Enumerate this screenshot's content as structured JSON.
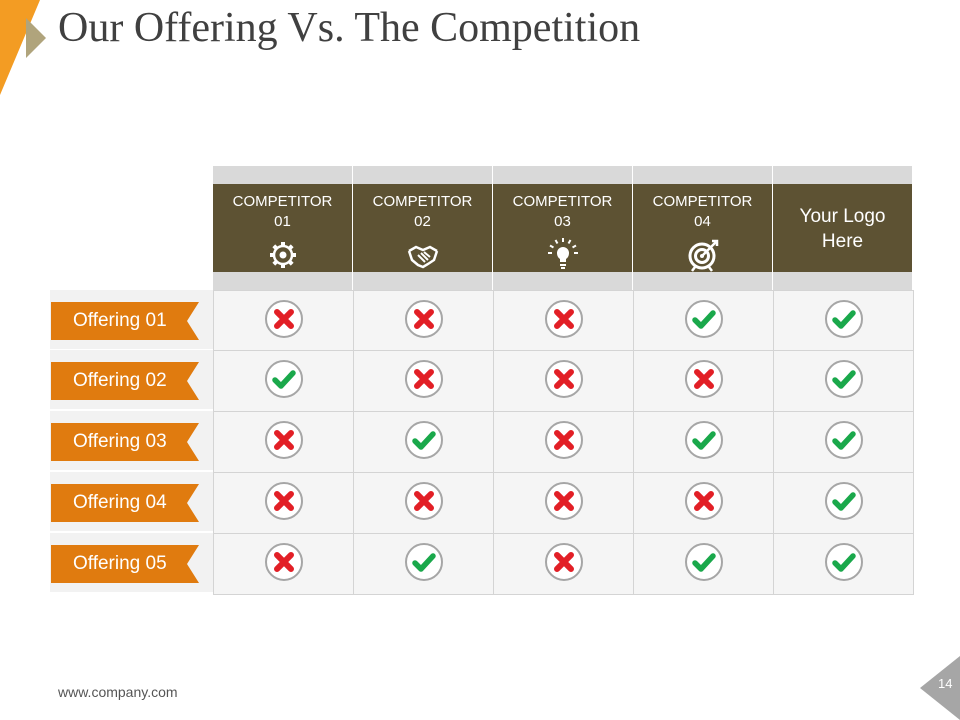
{
  "title": "Our Offering Vs. The Competition",
  "columns": [
    {
      "label": "COMPETITOR\n01",
      "icon": "gear-icon"
    },
    {
      "label": "COMPETITOR\n02",
      "icon": "handshake-icon"
    },
    {
      "label": "COMPETITOR\n03",
      "icon": "lightbulb-icon"
    },
    {
      "label": "COMPETITOR\n04",
      "icon": "target-icon"
    },
    {
      "label": "Your Logo\nHere",
      "icon": ""
    }
  ],
  "rows": [
    {
      "label": "Offering 01",
      "marks": [
        "cross",
        "cross",
        "cross",
        "check",
        "check"
      ]
    },
    {
      "label": "Offering 02",
      "marks": [
        "check",
        "cross",
        "cross",
        "cross",
        "check"
      ]
    },
    {
      "label": "Offering 03",
      "marks": [
        "cross",
        "check",
        "cross",
        "check",
        "check"
      ]
    },
    {
      "label": "Offering 04",
      "marks": [
        "cross",
        "cross",
        "cross",
        "cross",
        "check"
      ]
    },
    {
      "label": "Offering 05",
      "marks": [
        "cross",
        "check",
        "cross",
        "check",
        "check"
      ]
    }
  ],
  "footer": {
    "url": "www.company.com",
    "page_number": "14"
  },
  "colors": {
    "accent_orange": "#e07b0f",
    "header_brown": "#5d5233",
    "cross_red": "#e21f26",
    "check_green": "#1aa84b",
    "text_gray": "#404040"
  }
}
